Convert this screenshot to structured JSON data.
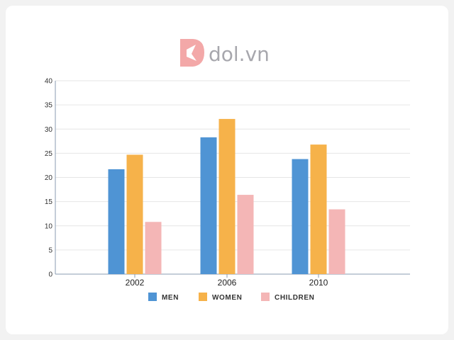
{
  "brand": {
    "logo_text": "dol.vn",
    "logo_color": "#a7a7ad",
    "mark_color": "#f3a8a8"
  },
  "chart_data": {
    "type": "bar",
    "title": "",
    "xlabel": "",
    "ylabel": "",
    "categories": [
      "2002",
      "2006",
      "2010"
    ],
    "series": [
      {
        "name": "MEN",
        "color": "#4f94d4",
        "values": [
          21.7,
          28.3,
          23.8
        ]
      },
      {
        "name": "WOMEN",
        "color": "#f6b24a",
        "values": [
          24.7,
          32.1,
          26.8
        ]
      },
      {
        "name": "CHILDREN",
        "color": "#f4b6b6",
        "values": [
          10.8,
          16.4,
          13.4
        ]
      }
    ],
    "ylim": [
      0,
      40
    ],
    "yticks": [
      "0",
      "5",
      "10",
      "15",
      "20",
      "25",
      "30",
      "35",
      "40"
    ],
    "grid": true,
    "legend_position": "bottom-center"
  }
}
